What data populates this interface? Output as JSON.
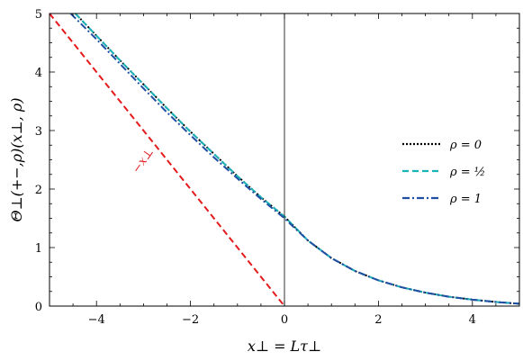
{
  "chart_data": {
    "type": "line",
    "xlabel": "x⊥ = Lτ⊥",
    "ylabel": "Θ⊥(+−,ρ)(x⊥, ρ)",
    "xlim": [
      -5,
      5
    ],
    "ylim": [
      0,
      5
    ],
    "xticks": [
      -4,
      -2,
      0,
      2,
      4
    ],
    "yticks": [
      0,
      1,
      2,
      3,
      4,
      5
    ],
    "xtick_labels": [
      "−4",
      "−2",
      "0",
      "2",
      "4"
    ],
    "ytick_labels": [
      "0",
      "1",
      "2",
      "3",
      "4",
      "5"
    ],
    "grid": false,
    "legend_position": "right",
    "series": [
      {
        "name": "ρ = 0",
        "color": "#000000",
        "style": "dotted",
        "x": [
          -4.45,
          -4,
          -3.5,
          -3,
          -2.5,
          -2,
          -1.5,
          -1,
          -0.5,
          0,
          0.5,
          1,
          1.5,
          2,
          2.5,
          3,
          3.5,
          4,
          4.5,
          5
        ],
        "y": [
          5.0,
          4.62,
          4.2,
          3.79,
          3.38,
          2.98,
          2.6,
          2.22,
          1.86,
          1.53,
          1.12,
          0.82,
          0.6,
          0.44,
          0.32,
          0.23,
          0.16,
          0.11,
          0.07,
          0.04
        ]
      },
      {
        "name": "ρ = ½",
        "color": "#1ab3b8",
        "style": "dashed",
        "x": [
          -4.45,
          -4,
          -3.5,
          -3,
          -2.5,
          -2,
          -1.5,
          -1,
          -0.5,
          0,
          0.5,
          1,
          1.5,
          2,
          2.5,
          3,
          3.5,
          4,
          4.5,
          5
        ],
        "y": [
          5.0,
          4.62,
          4.2,
          3.79,
          3.38,
          2.98,
          2.6,
          2.22,
          1.86,
          1.53,
          1.12,
          0.82,
          0.6,
          0.44,
          0.32,
          0.23,
          0.16,
          0.11,
          0.07,
          0.04
        ]
      },
      {
        "name": "ρ = 1",
        "color": "#1f4fa3",
        "style": "dashdot",
        "x": [
          -4.55,
          -4,
          -3.5,
          -3,
          -2.5,
          -2,
          -1.5,
          -1,
          -0.5,
          0,
          0.5,
          1,
          1.5,
          2,
          2.5,
          3,
          3.5,
          4,
          4.5,
          5
        ],
        "y": [
          5.0,
          4.56,
          4.14,
          3.72,
          3.31,
          2.92,
          2.54,
          2.18,
          1.83,
          1.5,
          1.12,
          0.82,
          0.6,
          0.44,
          0.32,
          0.23,
          0.16,
          0.11,
          0.07,
          0.04
        ]
      },
      {
        "name": "",
        "color": "#e41a1c",
        "style": "dashed",
        "x": [
          -5,
          0
        ],
        "y": [
          5,
          0
        ]
      }
    ],
    "annotations": [
      {
        "text": "−x⊥",
        "x": -2.95,
        "y": 2.45,
        "color": "#e41a1c",
        "rotate": -55
      }
    ]
  }
}
